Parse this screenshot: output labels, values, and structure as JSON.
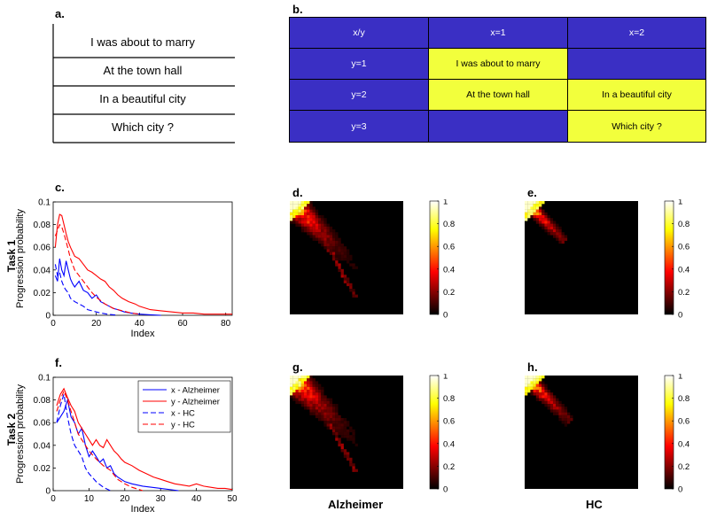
{
  "panels": {
    "a": "a.",
    "b": "b.",
    "c": "c.",
    "d": "d.",
    "e": "e.",
    "f": "f.",
    "g": "g.",
    "h": "h."
  },
  "panel_a": {
    "rows": [
      "I was about to marry",
      "At the town hall",
      "In a beautiful city",
      "Which city ?"
    ]
  },
  "panel_b": {
    "header": [
      "x/y",
      "x=1",
      "x=2"
    ],
    "rows": [
      {
        "label": "y=1",
        "cells": [
          "I was about to marry",
          ""
        ]
      },
      {
        "label": "y=2",
        "cells": [
          "At the town hall",
          "In a beautiful city"
        ]
      },
      {
        "label": "y=3",
        "cells": [
          "",
          "Which city ?"
        ]
      }
    ],
    "colors": {
      "blue": "#3a2fc4",
      "yellow": "#f2ff3c"
    }
  },
  "labels": {
    "task1": "Task 1",
    "task2": "Task 2",
    "alzheimer": "Alzheimer",
    "hc": "HC"
  },
  "chart_data": [
    {
      "id": "c",
      "type": "line",
      "title": "",
      "xlabel": "Index",
      "ylabel": "Progression probability",
      "xlim": [
        0,
        83
      ],
      "ylim": [
        0,
        0.1
      ],
      "xticks": [
        0,
        20,
        40,
        60,
        80
      ],
      "yticks": [
        0,
        0.02,
        0.04,
        0.06,
        0.08,
        0.1
      ],
      "series": [
        {
          "name": "x - Alzheimer",
          "color": "#0000ff",
          "dash": "solid",
          "x": [
            1,
            2,
            3,
            4,
            5,
            6,
            7,
            8,
            9,
            10,
            12,
            14,
            16,
            18,
            20,
            22,
            24,
            26,
            28,
            30,
            33,
            36,
            40,
            45,
            50
          ],
          "y": [
            0.035,
            0.03,
            0.05,
            0.04,
            0.035,
            0.048,
            0.04,
            0.032,
            0.028,
            0.025,
            0.03,
            0.022,
            0.02,
            0.015,
            0.018,
            0.012,
            0.01,
            0.008,
            0.006,
            0.005,
            0.003,
            0.002,
            0.001,
            0.0005,
            0
          ]
        },
        {
          "name": "y - Alzheimer",
          "color": "#ff0000",
          "dash": "solid",
          "x": [
            1,
            2,
            3,
            4,
            5,
            6,
            7,
            8,
            10,
            12,
            14,
            16,
            18,
            20,
            22,
            24,
            26,
            28,
            30,
            32,
            35,
            38,
            40,
            45,
            50,
            55,
            60,
            65,
            70,
            75,
            80,
            83
          ],
          "y": [
            0.06,
            0.08,
            0.089,
            0.088,
            0.08,
            0.072,
            0.065,
            0.06,
            0.052,
            0.05,
            0.045,
            0.04,
            0.038,
            0.035,
            0.032,
            0.03,
            0.025,
            0.022,
            0.018,
            0.015,
            0.012,
            0.01,
            0.008,
            0.005,
            0.004,
            0.003,
            0.002,
            0.002,
            0.001,
            0.001,
            0.001,
            0.001
          ]
        },
        {
          "name": "x - HC",
          "color": "#0000ff",
          "dash": "dashed",
          "x": [
            1,
            2,
            3,
            4,
            5,
            6,
            7,
            8,
            10,
            12,
            14,
            16,
            18,
            20,
            22,
            25,
            30
          ],
          "y": [
            0.045,
            0.035,
            0.038,
            0.03,
            0.025,
            0.022,
            0.02,
            0.015,
            0.012,
            0.01,
            0.008,
            0.005,
            0.004,
            0.003,
            0.002,
            0.001,
            0
          ]
        },
        {
          "name": "y - HC",
          "color": "#ff0000",
          "dash": "dashed",
          "x": [
            1,
            2,
            3,
            4,
            5,
            6,
            7,
            8,
            10,
            12,
            14,
            16,
            18,
            20,
            24,
            28,
            32,
            36,
            40
          ],
          "y": [
            0.07,
            0.075,
            0.08,
            0.078,
            0.072,
            0.065,
            0.058,
            0.05,
            0.04,
            0.035,
            0.03,
            0.025,
            0.02,
            0.016,
            0.01,
            0.006,
            0.004,
            0.002,
            0.001
          ]
        }
      ]
    },
    {
      "id": "f",
      "type": "line",
      "title": "",
      "xlabel": "Index",
      "ylabel": "Progression probability",
      "xlim": [
        0,
        50
      ],
      "ylim": [
        0,
        0.1
      ],
      "xticks": [
        0,
        10,
        20,
        30,
        40,
        50
      ],
      "yticks": [
        0,
        0.02,
        0.04,
        0.06,
        0.08,
        0.1
      ],
      "legend": "top-right",
      "series": [
        {
          "name": "x - Alzheimer",
          "color": "#0000ff",
          "dash": "solid",
          "x": [
            1,
            2,
            3,
            4,
            5,
            6,
            7,
            8,
            9,
            10,
            11,
            12,
            13,
            14,
            15,
            16,
            17,
            18,
            19,
            20,
            22,
            25,
            30,
            35
          ],
          "y": [
            0.06,
            0.065,
            0.07,
            0.08,
            0.065,
            0.06,
            0.05,
            0.055,
            0.04,
            0.03,
            0.035,
            0.03,
            0.025,
            0.028,
            0.02,
            0.022,
            0.015,
            0.012,
            0.01,
            0.008,
            0.006,
            0.004,
            0.002,
            0
          ]
        },
        {
          "name": "y - Alzheimer",
          "color": "#ff0000",
          "dash": "solid",
          "x": [
            1,
            2,
            3,
            4,
            5,
            6,
            7,
            8,
            9,
            10,
            11,
            12,
            13,
            14,
            15,
            16,
            17,
            18,
            19,
            20,
            22,
            24,
            26,
            28,
            30,
            32,
            34,
            36,
            38,
            40,
            42,
            44,
            46,
            48,
            50
          ],
          "y": [
            0.075,
            0.085,
            0.09,
            0.082,
            0.075,
            0.07,
            0.06,
            0.055,
            0.05,
            0.045,
            0.04,
            0.045,
            0.04,
            0.038,
            0.045,
            0.04,
            0.035,
            0.032,
            0.028,
            0.025,
            0.022,
            0.018,
            0.015,
            0.012,
            0.01,
            0.008,
            0.006,
            0.005,
            0.004,
            0.006,
            0.004,
            0.003,
            0.002,
            0.002,
            0.001
          ]
        },
        {
          "name": "x - HC",
          "color": "#0000ff",
          "dash": "dashed",
          "x": [
            1,
            2,
            3,
            4,
            5,
            6,
            7,
            8,
            9,
            10,
            12,
            14,
            16
          ],
          "y": [
            0.06,
            0.075,
            0.085,
            0.065,
            0.05,
            0.04,
            0.035,
            0.03,
            0.02,
            0.015,
            0.008,
            0.003,
            0
          ]
        },
        {
          "name": "y - HC",
          "color": "#ff0000",
          "dash": "dashed",
          "x": [
            1,
            2,
            3,
            4,
            5,
            6,
            7,
            8,
            9,
            10,
            12,
            14,
            16,
            18,
            20,
            22,
            25
          ],
          "y": [
            0.07,
            0.08,
            0.088,
            0.08,
            0.07,
            0.06,
            0.05,
            0.045,
            0.04,
            0.035,
            0.028,
            0.022,
            0.018,
            0.01,
            0.006,
            0.003,
            0
          ]
        }
      ]
    },
    {
      "id": "d",
      "type": "heatmap",
      "scale": "hot",
      "colorbar_ticks": [
        "1",
        "0.8",
        "0.6",
        "0.4",
        "0.2",
        "0"
      ],
      "streak": {
        "main_len": 0.75,
        "spread": 0.22,
        "secondary": true
      }
    },
    {
      "id": "e",
      "type": "heatmap",
      "scale": "hot",
      "colorbar_ticks": [
        "1",
        "0.8",
        "0.6",
        "0.4",
        "0.2",
        "0"
      ],
      "streak": {
        "main_len": 0.35,
        "spread": 0.12,
        "secondary": false
      }
    },
    {
      "id": "g",
      "type": "heatmap",
      "scale": "hot",
      "colorbar_ticks": [
        "1",
        "0.8",
        "0.6",
        "0.4",
        "0.2",
        "0"
      ],
      "streak": {
        "main_len": 0.95,
        "spread": 0.25,
        "secondary": true
      }
    },
    {
      "id": "h",
      "type": "heatmap",
      "scale": "hot",
      "colorbar_ticks": [
        "1",
        "0.8",
        "0.6",
        "0.4",
        "0.2",
        "0"
      ],
      "streak": {
        "main_len": 0.4,
        "spread": 0.14,
        "secondary": false
      }
    }
  ]
}
